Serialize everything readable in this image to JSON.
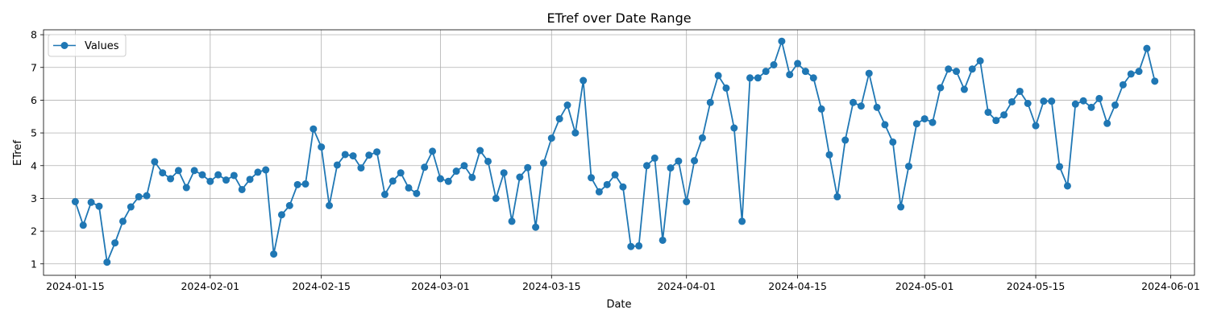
{
  "chart_data": {
    "type": "line",
    "title": "ETref over Date Range",
    "xlabel": "Date",
    "ylabel": "ETref",
    "x_range": [
      "2024-01-11",
      "2024-06-04"
    ],
    "ylim": [
      0.65,
      8.15
    ],
    "x_ticks": [
      "2024-01-15",
      "2024-02-01",
      "2024-02-15",
      "2024-03-01",
      "2024-03-15",
      "2024-04-01",
      "2024-04-15",
      "2024-05-01",
      "2024-05-15",
      "2024-06-01"
    ],
    "y_ticks": [
      1,
      2,
      3,
      4,
      5,
      6,
      7,
      8
    ],
    "grid": true,
    "legend_position": "top-left",
    "line_color": "#1f77b4",
    "series": [
      {
        "name": "Values",
        "start_date": "2024-01-15",
        "values": [
          2.9,
          2.18,
          2.88,
          2.76,
          1.05,
          1.64,
          2.3,
          2.74,
          3.05,
          3.08,
          4.12,
          3.78,
          3.6,
          3.85,
          3.33,
          3.85,
          3.72,
          3.52,
          3.72,
          3.56,
          3.7,
          3.27,
          3.58,
          3.8,
          3.87,
          1.3,
          2.5,
          2.78,
          3.42,
          3.44,
          5.12,
          4.57,
          2.78,
          4.02,
          4.34,
          4.3,
          3.93,
          4.32,
          4.42,
          3.12,
          3.53,
          3.78,
          3.32,
          3.15,
          3.95,
          4.44,
          3.6,
          3.52,
          3.83,
          4.0,
          3.64,
          4.46,
          4.13,
          3.0,
          3.78,
          2.3,
          3.65,
          3.94,
          2.12,
          4.08,
          4.84,
          5.43,
          5.85,
          5.0,
          6.6,
          3.63,
          3.2,
          3.42,
          3.72,
          3.35,
          1.53,
          1.55,
          4.0,
          4.23,
          1.72,
          3.93,
          4.14,
          2.9,
          4.15,
          4.85,
          5.93,
          6.75,
          6.37,
          5.15,
          2.3,
          6.68,
          6.68,
          6.88,
          7.08,
          7.8,
          6.78,
          7.12,
          6.88,
          6.68,
          5.73,
          4.33,
          3.05,
          4.78,
          5.93,
          5.82,
          6.82,
          5.78,
          5.25,
          4.72,
          2.74,
          3.98,
          5.28,
          5.43,
          5.32,
          6.38,
          6.95,
          6.88,
          6.33,
          6.95,
          7.2,
          5.63,
          5.38,
          5.55,
          5.95,
          6.27,
          5.9,
          5.22,
          5.97,
          5.97,
          3.97,
          3.38,
          5.88,
          5.98,
          5.78,
          6.05,
          5.29,
          5.85,
          6.47,
          6.8,
          6.88,
          7.58,
          6.58
        ]
      }
    ]
  }
}
